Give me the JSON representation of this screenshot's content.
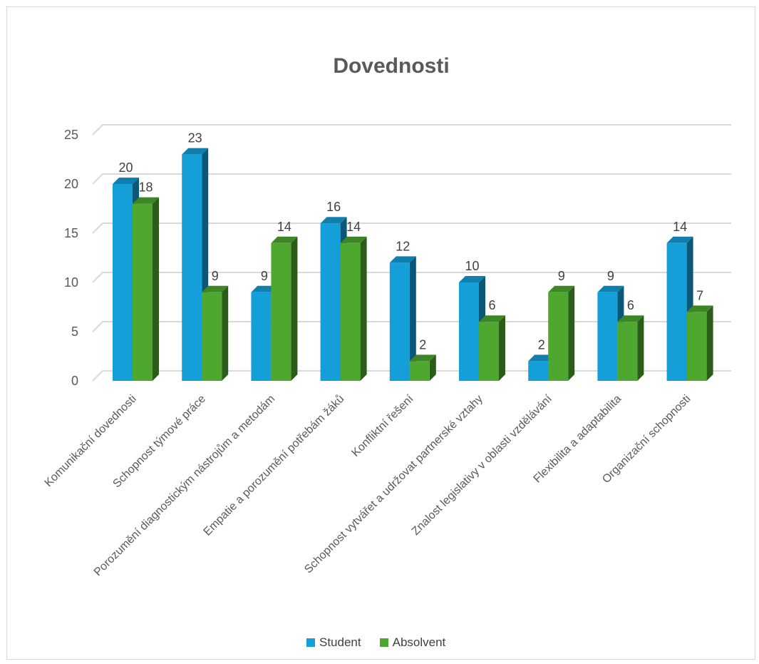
{
  "chart_data": {
    "type": "bar",
    "title": "Dovednosti",
    "xlabel": "",
    "ylabel": "",
    "ylim": [
      0,
      25
    ],
    "yticks": [
      0,
      5,
      10,
      15,
      20,
      25
    ],
    "grid": true,
    "legend_position": "bottom",
    "categories": [
      "Komunikační dovednosti",
      "Schopnost týmové práce",
      "Porozumění diagnostickým nástrojům a metodám",
      "Empatie a porozumění potřebám žáků",
      "Konfliktní řešení",
      "Schopnost vytvářet a udržovat partnerské vztahy",
      "Znalost legislativy v oblasti vzdělávání",
      "Flexibilita a adaptabilita",
      "Organizační schopnosti"
    ],
    "series": [
      {
        "name": "Student",
        "values": [
          20,
          23,
          9,
          16,
          12,
          10,
          2,
          9,
          14
        ],
        "color": "#149fd8"
      },
      {
        "name": "Absolvent",
        "values": [
          18,
          9,
          14,
          14,
          2,
          6,
          9,
          6,
          7
        ],
        "color": "#4ea72e"
      }
    ]
  }
}
